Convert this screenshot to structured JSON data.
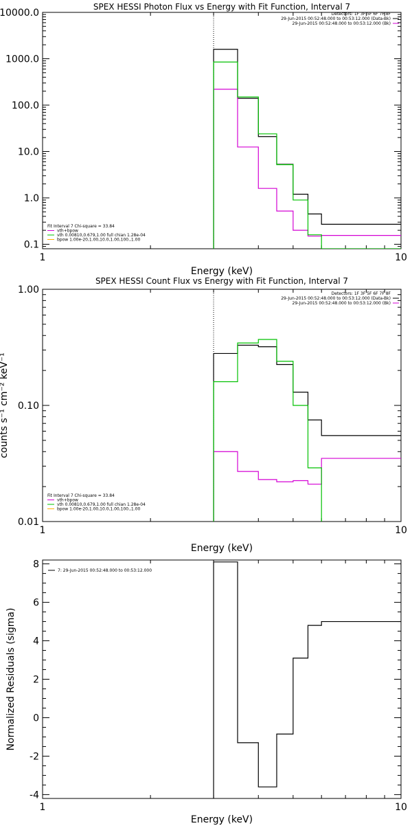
{
  "colors": {
    "data": "#000000",
    "total_model": "#d400d4",
    "vth": "#00c000",
    "bpow": "#ffb000",
    "axes": "#000000"
  },
  "chart_data": [
    {
      "type": "line",
      "title": "SPEX HESSI Photon Flux vs Energy with Fit Function, Interval 7",
      "xlabel": "Energy (keV)",
      "ylabel": "",
      "xscale": "log",
      "yscale": "log",
      "xlim": [
        1,
        10
      ],
      "ylim": [
        0.08,
        10000
      ],
      "xticks": [
        {
          "v": 1,
          "label": "1"
        },
        {
          "v": 10,
          "label": "10"
        }
      ],
      "yticks": [
        {
          "v": 0.1,
          "label": "0.1"
        },
        {
          "v": 1,
          "label": "1.0"
        },
        {
          "v": 10,
          "label": "10.0"
        },
        {
          "v": 100,
          "label": "100.0"
        },
        {
          "v": 1000,
          "label": "1000.0"
        },
        {
          "v": 10000,
          "label": "10000.0"
        }
      ],
      "marker_line_x": 3.0,
      "header_lines": [
        "Detectors: 1F 3F 5F 6F 7F 8F",
        "29-Jun-2015 00:52:48.000 to 00:53:12.000 (Data-Bk)",
        "29-Jun-2015 00:52:48.000 to 00:53:12.000 (Bk)"
      ],
      "header_swatches": [
        "#000000",
        "#d400d4"
      ],
      "legend": [
        {
          "text": "Fit Interval 7   Chi-square = 33.84",
          "color": ""
        },
        {
          "text": "vth+bpow",
          "color": "#d400d4"
        },
        {
          "text": "vth 0.00810,0.679,1.00  full chian 1.28e-04",
          "color": "#00c000"
        },
        {
          "text": "bpow 1.00e-20,1.00,10.0,1.00,100.,1.00",
          "color": "#ffb000"
        }
      ],
      "series": [
        {
          "name": "29-Jun-2015 00:52:48.000 to 00:53:12.000 (Data-Bk)",
          "color": "#000000",
          "edges": [
            3.0,
            3.5,
            4.0,
            4.5,
            5.0,
            5.5,
            6.0,
            7.0,
            8.0,
            9.0,
            10.0
          ],
          "values": [
            1600,
            140,
            21,
            5.3,
            1.2,
            0.45,
            0.27,
            0.27,
            0.27,
            0.27
          ]
        },
        {
          "name": "29-Jun-2015 00:52:48.000 to 00:53:12.000 (Bk)",
          "color": "#d400d4",
          "edges": [
            3.0,
            3.5,
            4.0,
            4.5,
            5.0,
            5.5,
            6.0,
            7.0,
            8.0,
            9.0,
            10.0
          ],
          "values": [
            220,
            12.5,
            1.6,
            0.52,
            0.2,
            0.15,
            0.155,
            0.155,
            0.155,
            0.155
          ]
        },
        {
          "name": "vth",
          "color": "#00c000",
          "edges": [
            3.0,
            3.5,
            4.0,
            4.5,
            5.0,
            5.5,
            6.0,
            7.0,
            8.0,
            9.0,
            10.0
          ],
          "values": [
            850,
            150,
            24,
            5.2,
            0.9,
            0.16,
            0.08,
            0.08,
            0.08,
            0.08
          ]
        }
      ]
    },
    {
      "type": "line",
      "title": "SPEX HESSI Count Flux vs Energy with Fit Function, Interval 7",
      "xlabel": "Energy (keV)",
      "ylabel": "counts s⁻¹ cm⁻² keV⁻¹",
      "xscale": "log",
      "yscale": "log",
      "xlim": [
        1,
        10
      ],
      "ylim": [
        0.01,
        1.0
      ],
      "xticks": [
        {
          "v": 1,
          "label": "1"
        },
        {
          "v": 10,
          "label": "10"
        }
      ],
      "yticks": [
        {
          "v": 0.01,
          "label": "0.01"
        },
        {
          "v": 0.1,
          "label": "0.10"
        },
        {
          "v": 1.0,
          "label": "1.00"
        }
      ],
      "marker_line_x": 3.0,
      "header_lines": [
        "Detectors: 1F 3F 5F 6F 7F 8F",
        "29-Jun-2015 00:52:48.000 to 00:53:12.000 (Data-Bk)",
        "29-Jun-2015 00:52:48.000 to 00:53:12.000 (Bk)"
      ],
      "header_swatches": [
        "#000000",
        "#d400d4"
      ],
      "legend": [
        {
          "text": "Fit Interval 7   Chi-square = 33.84",
          "color": ""
        },
        {
          "text": "vth+bpow",
          "color": "#d400d4"
        },
        {
          "text": "vth 0.00810,0.679,1.00  full chian 1.28e-04",
          "color": "#00c000"
        },
        {
          "text": "bpow 1.00e-20,1.00,10.0,1.00,100.,1.00",
          "color": "#ffb000"
        }
      ],
      "series": [
        {
          "name": "29-Jun-2015 00:52:48.000 to 00:53:12.000 (Data-Bk)",
          "color": "#000000",
          "edges": [
            3.0,
            3.5,
            4.0,
            4.5,
            5.0,
            5.5,
            6.0,
            7.0,
            8.0,
            9.0,
            10.0
          ],
          "values": [
            0.28,
            0.33,
            0.32,
            0.225,
            0.13,
            0.075,
            0.055,
            0.055,
            0.055,
            0.055
          ]
        },
        {
          "name": "29-Jun-2015 00:52:48.000 to 00:53:12.000 (Bk)",
          "color": "#d400d4",
          "edges": [
            3.0,
            3.5,
            4.0,
            4.5,
            5.0,
            5.5,
            6.0,
            7.0,
            8.0,
            9.0,
            10.0
          ],
          "values": [
            0.04,
            0.027,
            0.023,
            0.022,
            0.0225,
            0.021,
            0.035,
            0.035,
            0.035,
            0.035
          ]
        },
        {
          "name": "vth",
          "color": "#00c000",
          "edges": [
            3.0,
            3.5,
            4.0,
            4.5,
            5.0,
            5.5,
            6.0,
            7.0,
            8.0,
            9.0,
            10.0
          ],
          "values": [
            0.16,
            0.345,
            0.37,
            0.24,
            0.1,
            0.029,
            0.009,
            0.009,
            0.009,
            0.009
          ]
        }
      ]
    },
    {
      "type": "line",
      "title": "",
      "xlabel": "Energy (keV)",
      "ylabel": "Normalized Residuals (sigma)",
      "xscale": "log",
      "yscale": "linear",
      "xlim": [
        1,
        10
      ],
      "ylim": [
        -4.2,
        8.2
      ],
      "xticks": [
        {
          "v": 1,
          "label": "1"
        },
        {
          "v": 10,
          "label": "10"
        }
      ],
      "yticks": [
        {
          "v": -4,
          "label": "-4"
        },
        {
          "v": -2,
          "label": "-2"
        },
        {
          "v": 0,
          "label": "0"
        },
        {
          "v": 2,
          "label": "2"
        },
        {
          "v": 4,
          "label": "4"
        },
        {
          "v": 6,
          "label": "6"
        },
        {
          "v": 8,
          "label": "8"
        }
      ],
      "header_lines": [],
      "header_swatches": [],
      "legend": [
        {
          "text": "7: 29-Jun-2015 00:52:48.000 to 00:53:12.000",
          "color": "#000000"
        }
      ],
      "series": [
        {
          "name": "7: 29-Jun-2015 00:52:48.000 to 00:53:12.000",
          "color": "#000000",
          "edges": [
            3.0,
            3.5,
            4.0,
            4.5,
            5.0,
            5.5,
            6.0,
            7.0,
            8.0,
            9.0,
            10.0
          ],
          "values": [
            8.1,
            -1.3,
            -3.6,
            -0.85,
            3.1,
            4.8,
            5.0,
            5.0,
            5.0,
            5.0
          ]
        }
      ]
    }
  ]
}
